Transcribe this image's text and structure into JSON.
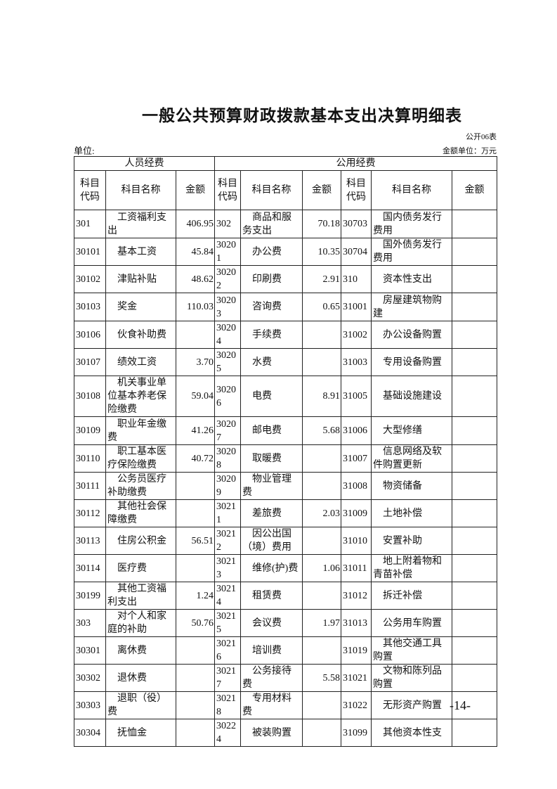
{
  "header": {
    "title": "一般公共预算财政拨款基本支出决算明细表",
    "form_no": "公开06表",
    "unit": "单位:",
    "money_unit": "金额单位：万元"
  },
  "table": {
    "groups": [
      "人员经费",
      "公用经费"
    ],
    "columns": [
      "科目代码",
      "科目名称",
      "金额",
      "科目代码",
      "科目名称",
      "金额",
      "科目代码",
      "科目名称",
      "金额"
    ],
    "rows": [
      [
        "301",
        "工资福利支出",
        "406.95",
        "302",
        "商品和服务支出",
        "70.18",
        "30703",
        "国内债务发行费用",
        null
      ],
      [
        "30101",
        "基本工资",
        "45.84",
        "30201",
        "办公费",
        "10.35",
        "30704",
        "国外债务发行费用",
        null
      ],
      [
        "30102",
        "津贴补贴",
        "48.62",
        "30202",
        "印刷费",
        "2.91",
        "310",
        "资本性支出",
        null
      ],
      [
        "30103",
        "奖金",
        "110.03",
        "30203",
        "咨询费",
        "0.65",
        "31001",
        "房屋建筑物购建",
        null
      ],
      [
        "30106",
        "伙食补助费",
        null,
        "30204",
        "手续费",
        null,
        "31002",
        "办公设备购置",
        null
      ],
      [
        "30107",
        "绩效工资",
        "3.70",
        "30205",
        "水费",
        null,
        "31003",
        "专用设备购置",
        null
      ],
      [
        "30108",
        "机关事业单位基本养老保险缴费",
        "59.04",
        "30206",
        "电费",
        "8.91",
        "31005",
        "基础设施建设",
        null
      ],
      [
        "30109",
        "职业年金缴费",
        "41.26",
        "30207",
        "邮电费",
        "5.68",
        "31006",
        "大型修缮",
        null
      ],
      [
        "30110",
        "职工基本医疗保险缴费",
        "40.72",
        "30208",
        "取暖费",
        null,
        "31007",
        "信息网络及软件购置更新",
        null
      ],
      [
        "30111",
        "公务员医疗补助缴费",
        null,
        "30209",
        "物业管理费",
        null,
        "31008",
        "物资储备",
        null
      ],
      [
        "30112",
        "其他社会保障缴费",
        null,
        "30211",
        "差旅费",
        "2.03",
        "31009",
        "土地补偿",
        null
      ],
      [
        "30113",
        "住房公积金",
        "56.51",
        "30212",
        "因公出国（境）费用",
        null,
        "31010",
        "安置补助",
        null
      ],
      [
        "30114",
        "医疗费",
        null,
        "30213",
        "维修(护)费",
        "1.06",
        "31011",
        "地上附着物和青苗补偿",
        null
      ],
      [
        "30199",
        "其他工资福利支出",
        "1.24",
        "30214",
        "租赁费",
        null,
        "31012",
        "拆迁补偿",
        null
      ],
      [
        "303",
        "对个人和家庭的补助",
        "50.76",
        "30215",
        "会议费",
        "1.97",
        "31013",
        "公务用车购置",
        null
      ],
      [
        "30301",
        "离休费",
        null,
        "30216",
        "培训费",
        null,
        "31019",
        "其他交通工具购置",
        null
      ],
      [
        "30302",
        "退休费",
        null,
        "30217",
        "公务接待费",
        "5.58",
        "31021",
        "文物和陈列品购置",
        null
      ],
      [
        "30303",
        "退职（役）费",
        null,
        "30218",
        "专用材料费",
        null,
        "31022",
        "无形资产购置",
        null
      ],
      [
        "30304",
        "抚恤金",
        null,
        "30224",
        "被装购置",
        null,
        "31099",
        "其他资本性支",
        null
      ]
    ]
  },
  "footer": {
    "page_number": "-14-"
  }
}
